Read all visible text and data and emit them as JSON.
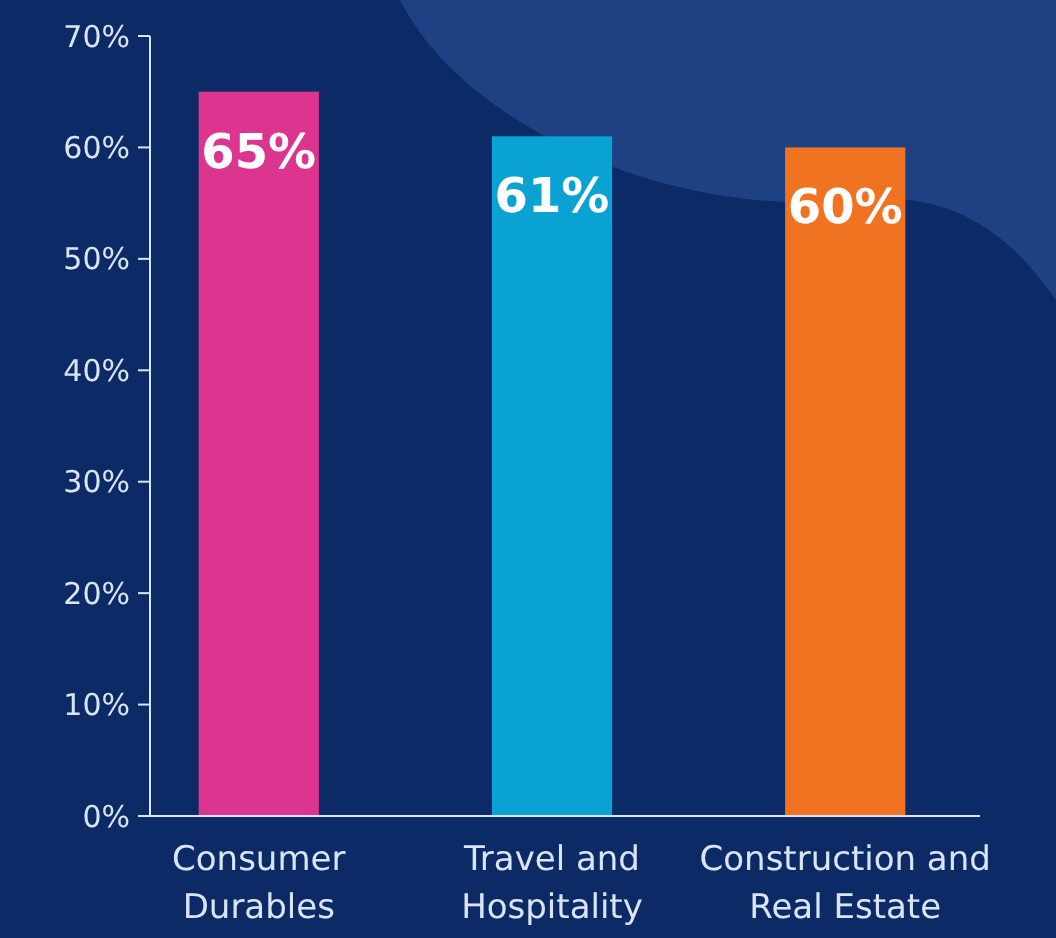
{
  "chart_data": {
    "type": "bar",
    "categories": [
      "Consumer Durables",
      "Travel and Hospitality",
      "Construction and Real Estate"
    ],
    "values": [
      65,
      61,
      60
    ],
    "colors": [
      "#dc3590",
      "#0aa2d2",
      "#f07322"
    ],
    "value_labels": [
      "65%",
      "61%",
      "60%"
    ],
    "ylim": [
      0,
      70
    ],
    "yticks": [
      {
        "value": 0,
        "label": "0%"
      },
      {
        "value": 10,
        "label": "10%"
      },
      {
        "value": 20,
        "label": "20%"
      },
      {
        "value": 30,
        "label": "30%"
      },
      {
        "value": 40,
        "label": "40%"
      },
      {
        "value": 50,
        "label": "50%"
      },
      {
        "value": 60,
        "label": "60%"
      },
      {
        "value": 70,
        "label": "70%"
      }
    ],
    "grid": false
  }
}
